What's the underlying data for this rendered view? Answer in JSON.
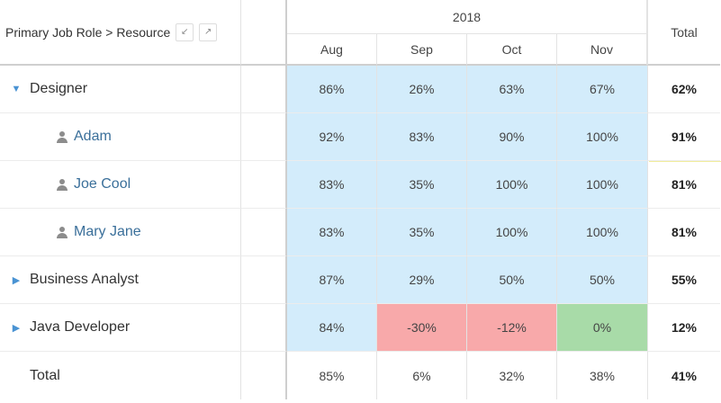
{
  "header": {
    "dimension_title": "Primary Job Role > Resource",
    "year": "2018",
    "months": [
      "Aug",
      "Sep",
      "Oct",
      "Nov"
    ],
    "total_label": "Total"
  },
  "rows": [
    {
      "label": "Designer",
      "kind": "group",
      "state": "expanded",
      "values": [
        "86%",
        "26%",
        "63%",
        "67%"
      ],
      "total": "62%"
    },
    {
      "label": "Adam",
      "kind": "resource",
      "values": [
        "92%",
        "83%",
        "90%",
        "100%"
      ],
      "total": "91%"
    },
    {
      "label": "Joe Cool",
      "kind": "resource",
      "values": [
        "83%",
        "35%",
        "100%",
        "100%"
      ],
      "total": "81%"
    },
    {
      "label": "Mary Jane",
      "kind": "resource",
      "values": [
        "83%",
        "35%",
        "100%",
        "100%"
      ],
      "total": "81%"
    },
    {
      "label": "Business Analyst",
      "kind": "group",
      "state": "collapsed",
      "values": [
        "87%",
        "29%",
        "50%",
        "50%"
      ],
      "total": "55%"
    },
    {
      "label": "Java Developer",
      "kind": "group",
      "state": "collapsed",
      "values": [
        "84%",
        "-30%",
        "-12%",
        "0%"
      ],
      "total": "12%"
    },
    {
      "label": "Total",
      "kind": "total",
      "values": [
        "85%",
        "6%",
        "32%",
        "38%"
      ],
      "total": "41%"
    }
  ],
  "colors": {
    "utilization_blue": "#d3ecfb",
    "overallocated_red": "#f8a9aa",
    "zero_green": "#a8dba8",
    "link_blue": "#3a6f9a",
    "toggle_blue": "#4a93d3"
  },
  "icons": {
    "expanded": "caret-down-icon",
    "collapsed": "caret-right-icon",
    "resource": "person-icon",
    "collapse_all": "collapse-arrows-icon",
    "expand_all": "expand-arrows-icon"
  }
}
